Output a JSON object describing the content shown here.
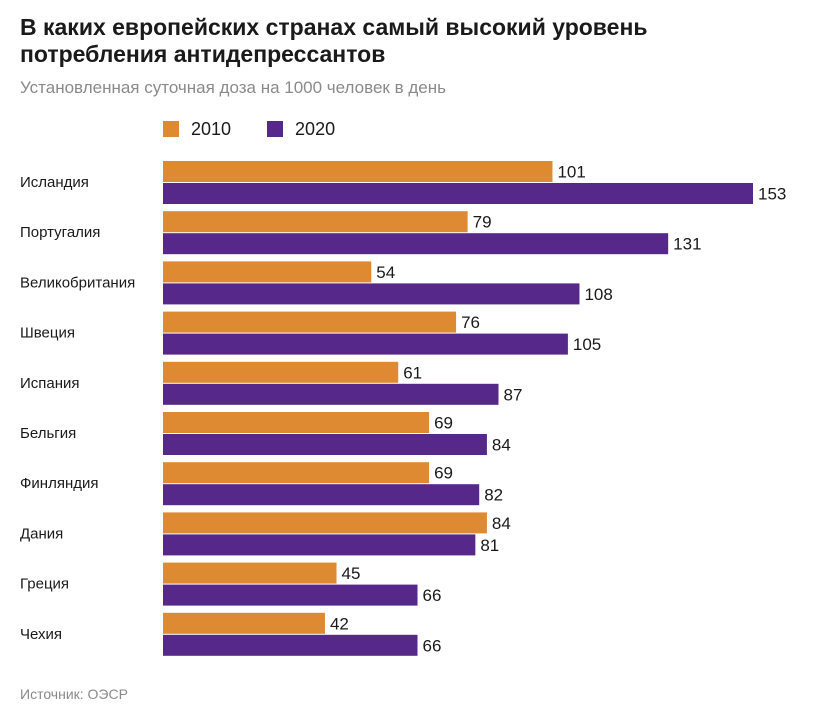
{
  "header": {
    "title": "В каких европейских странах самый высокий уровень потребления антидепрессантов",
    "subtitle": "Установленная суточная доза на 1000 человек в день"
  },
  "footer": {
    "source": "Источник: ОЭСР"
  },
  "chart_data": {
    "type": "bar",
    "orientation": "horizontal",
    "title": "В каких европейских странах самый высокий уровень потребления антидепрессантов",
    "subtitle": "Установленная суточная доза на 1000 человек в день",
    "xlabel": "",
    "ylabel": "",
    "xlim": [
      0,
      153
    ],
    "grid": false,
    "legend_placement": "top-left",
    "categories": [
      "Исландия",
      "Португалия",
      "Великобритания",
      "Швеция",
      "Испания",
      "Бельгия",
      "Финляндия",
      "Дания",
      "Греция",
      "Чехия"
    ],
    "series": [
      {
        "name": "2010",
        "color": "#de8a33",
        "values": [
          101,
          79,
          54,
          76,
          61,
          69,
          69,
          84,
          45,
          42
        ]
      },
      {
        "name": "2020",
        "color": "#56288a",
        "values": [
          153,
          131,
          108,
          105,
          87,
          84,
          82,
          81,
          66,
          66
        ]
      }
    ]
  }
}
